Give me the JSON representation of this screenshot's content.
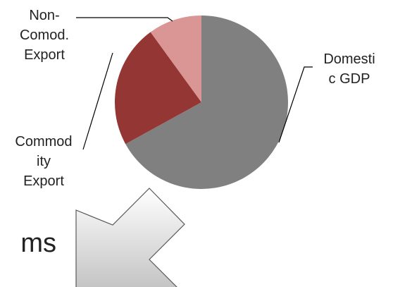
{
  "chart_data": {
    "type": "pie",
    "title": "",
    "slices": [
      {
        "label": "Domestic GDP",
        "display": "Domesti\nc GDP",
        "value": 67,
        "color": "#808080"
      },
      {
        "label": "Commodity Export",
        "display": "Commod\nity\nExport",
        "value": 23,
        "color": "#943634"
      },
      {
        "label": "Non-Comod. Export",
        "display": "Non-\nComod.\nExport",
        "value": 10,
        "color": "#d99694"
      }
    ],
    "start_angle_deg": 0,
    "direction": "clockwise",
    "legend": "none"
  },
  "bottom_text": "ms",
  "colors": {
    "arrow_fill_top": "#ffffff",
    "arrow_fill_bottom": "#bfbfbf",
    "arrow_stroke": "#595959",
    "leader": "#000000"
  }
}
